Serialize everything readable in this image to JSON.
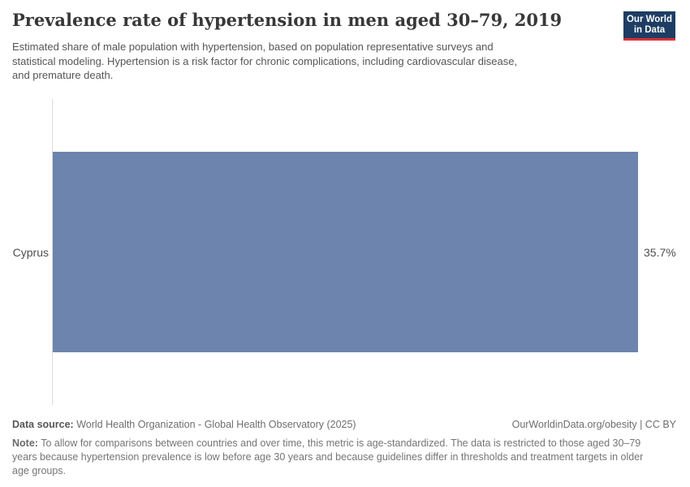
{
  "header": {
    "title": "Prevalence rate of hypertension in men aged 30–79, 2019",
    "subtitle": "Estimated share of male population with hypertension, based on population representative surveys and\nstatistical modeling. Hypertension is a risk factor for chronic complications, including cardiovascular disease,\nand premature death.",
    "logo": {
      "line1": "Our World",
      "line2": "in Data",
      "bg_color": "#1d3d63",
      "accent_color": "#dc2f36"
    }
  },
  "chart_data": {
    "type": "bar",
    "orientation": "horizontal",
    "title": "Prevalence rate of hypertension in men aged 30–79, 2019",
    "categories": [
      "Cyprus"
    ],
    "values": [
      35.7
    ],
    "value_labels": [
      "35.7%"
    ],
    "unit": "%",
    "xlim": [
      0,
      35.7
    ],
    "bar_color": "#6c84ae",
    "axis_color": "#dddddd",
    "grid": false,
    "legend": "none"
  },
  "footer": {
    "data_source_label": "Data source:",
    "data_source": "World Health Organization - Global Health Observatory (2025)",
    "attribution": "OurWorldinData.org/obesity | CC BY",
    "note_label": "Note:",
    "note": "To allow for comparisons between countries and over time, this metric is age-standardized. The data is restricted to those aged 30–79\nyears because hypertension prevalence is low before age 30 years and because guidelines differ in thresholds and treatment targets in older\nage groups."
  }
}
